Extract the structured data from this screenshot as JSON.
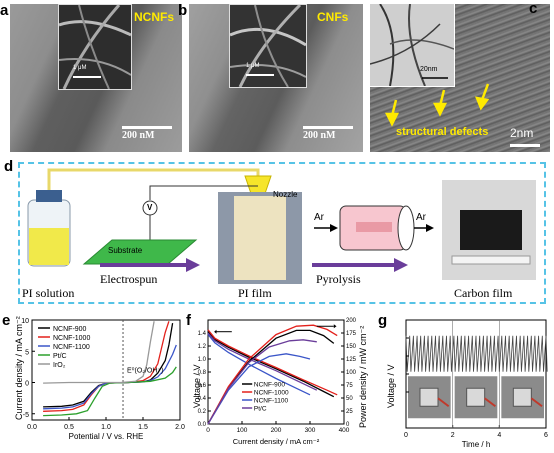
{
  "panel_labels": {
    "a": "a",
    "b": "b",
    "c": "c",
    "d": "d",
    "e": "e",
    "f": "f",
    "g": "g"
  },
  "panel_a": {
    "inset_label": "NCNFs",
    "inset_scale": "1 μM",
    "scale": "200 nM"
  },
  "panel_b": {
    "inset_label": "CNFs",
    "inset_scale": "1 μM",
    "scale": "200 nM"
  },
  "panel_c": {
    "inset_scale": "20nm",
    "annotation": "structural defects",
    "scale": "2nm"
  },
  "panel_d": {
    "nozzle": "Nozzle",
    "voltage": "V",
    "substrate": "Substrate",
    "electrospun": "Electrospun",
    "pyrolysis": "Pyrolysis",
    "gas_in": "Ar",
    "gas_out": "Ar",
    "pi_solution": "PI solution",
    "pi_film": "PI film",
    "carbon_film": "Carbon film"
  },
  "colors": {
    "accent": "#6a3d9a",
    "dashed": "#56c3e6",
    "yellow": "#ffea00"
  },
  "chart_data": [
    {
      "panel": "e",
      "type": "line",
      "xlabel": "Potential / V vs. RHE",
      "ylabel": "Current density / mA cm⁻²",
      "xlim": [
        0,
        2.0
      ],
      "ylim": [
        -6,
        10
      ],
      "xticks": [
        "0.0",
        "0.5",
        "1.0",
        "1.5",
        "2.0"
      ],
      "yticks": [
        "-5",
        "0",
        "5",
        "10"
      ],
      "annotation": "E⁰(O₂/OH⁻)",
      "reference_x": 1.23,
      "series": [
        {
          "name": "NCNF-900",
          "color": "#000000",
          "x": [
            0.15,
            0.4,
            0.55,
            0.7,
            0.8,
            0.9,
            1.0,
            1.3,
            1.5,
            1.6,
            1.7,
            1.8,
            1.85,
            1.9
          ],
          "y": [
            -3.9,
            -3.8,
            -3.6,
            -3.0,
            -1.6,
            -0.5,
            -0.1,
            0,
            0.1,
            0.4,
            1.5,
            3.5,
            6,
            9.5
          ]
        },
        {
          "name": "NCNF-1000",
          "color": "#e3201b",
          "x": [
            0.15,
            0.4,
            0.55,
            0.7,
            0.8,
            0.9,
            1.0,
            1.3,
            1.5,
            1.6,
            1.7,
            1.75,
            1.8,
            1.85
          ],
          "y": [
            -4.6,
            -4.5,
            -4.3,
            -3.6,
            -2.0,
            -0.6,
            -0.1,
            0,
            0.3,
            1.0,
            3.0,
            5.5,
            8,
            9.8
          ]
        },
        {
          "name": "NCNF-1100",
          "color": "#3a55c8",
          "x": [
            0.15,
            0.4,
            0.55,
            0.7,
            0.8,
            0.9,
            1.0,
            1.3,
            1.5,
            1.6,
            1.7,
            1.8,
            1.9,
            1.95
          ],
          "y": [
            -4.2,
            -4.1,
            -3.9,
            -3.3,
            -1.8,
            -0.6,
            -0.1,
            0,
            0.1,
            0.3,
            0.9,
            2.2,
            4.5,
            6
          ]
        },
        {
          "name": "Pt/C",
          "color": "#2ca02c",
          "x": [
            0.15,
            0.4,
            0.6,
            0.75,
            0.85,
            0.95,
            1.05,
            1.3,
            1.6,
            1.8,
            1.9,
            1.95
          ],
          "y": [
            -5.3,
            -5.2,
            -5.0,
            -4.5,
            -2.5,
            -0.6,
            -0.1,
            0,
            0.2,
            0.7,
            1.6,
            2.5
          ]
        },
        {
          "name": "IrO₂",
          "color": "#999999",
          "x": [
            0.15,
            0.5,
            0.9,
            1.2,
            1.4,
            1.5,
            1.55,
            1.6,
            1.65
          ],
          "y": [
            -0.1,
            0,
            0,
            0,
            0.2,
            1.0,
            2.8,
            6.5,
            9.8
          ]
        }
      ]
    },
    {
      "panel": "f",
      "type": "line",
      "xlabel": "Current density / mA cm⁻²",
      "ylabel": "Voltage / V",
      "y2label": "Power density / mW cm⁻²",
      "xlim": [
        0,
        400
      ],
      "ylim": [
        0,
        1.6
      ],
      "y2lim": [
        0,
        200
      ],
      "xticks": [
        "0",
        "100",
        "200",
        "300",
        "400"
      ],
      "yticks": [
        "0.0",
        "0.2",
        "0.4",
        "0.6",
        "0.8",
        "1.0",
        "1.2",
        "1.4"
      ],
      "y2ticks": [
        "0",
        "25",
        "50",
        "75",
        "100",
        "125",
        "150",
        "175",
        "200"
      ],
      "polarization": [
        {
          "name": "NCNF-900",
          "color": "#000000",
          "x": [
            0,
            20,
            60,
            120,
            200,
            280,
            340,
            370
          ],
          "y": [
            1.42,
            1.3,
            1.18,
            1.03,
            0.85,
            0.66,
            0.5,
            0.42
          ]
        },
        {
          "name": "NCNF-1000",
          "color": "#e3201b",
          "x": [
            0,
            20,
            60,
            120,
            200,
            280,
            350,
            380
          ],
          "y": [
            1.45,
            1.32,
            1.2,
            1.05,
            0.87,
            0.68,
            0.52,
            0.45
          ]
        },
        {
          "name": "NCNF-1100",
          "color": "#3a55c8",
          "x": [
            0,
            20,
            60,
            120,
            200,
            260,
            300
          ],
          "y": [
            1.38,
            1.25,
            1.1,
            0.92,
            0.7,
            0.55,
            0.45
          ]
        },
        {
          "name": "Pt/C",
          "color": "#6a3d9a",
          "x": [
            0,
            20,
            60,
            120,
            200,
            280,
            320
          ],
          "y": [
            1.4,
            1.28,
            1.15,
            1.0,
            0.82,
            0.62,
            0.52
          ]
        }
      ],
      "power": [
        {
          "name": "NCNF-900",
          "color": "#000000",
          "x": [
            0,
            60,
            120,
            200,
            260,
            300,
            340,
            370
          ],
          "y": [
            0,
            70,
            120,
            165,
            180,
            180,
            170,
            155
          ]
        },
        {
          "name": "NCNF-1000",
          "color": "#e3201b",
          "x": [
            0,
            60,
            120,
            200,
            260,
            310,
            350,
            380
          ],
          "y": [
            0,
            72,
            125,
            172,
            188,
            190,
            182,
            170
          ]
        },
        {
          "name": "NCNF-1100",
          "color": "#3a55c8",
          "x": [
            0,
            60,
            120,
            180,
            230,
            270,
            300
          ],
          "y": [
            0,
            65,
            110,
            130,
            135,
            130,
            125
          ]
        },
        {
          "name": "Pt/C",
          "color": "#6a3d9a",
          "x": [
            0,
            60,
            120,
            180,
            240,
            280,
            320
          ],
          "y": [
            0,
            68,
            118,
            148,
            160,
            162,
            158
          ]
        }
      ]
    },
    {
      "panel": "g",
      "type": "line",
      "xlabel": "Time / h",
      "ylabel": "Voltage / V",
      "xlim": [
        0,
        6
      ],
      "ylim": [
        0,
        2.4
      ],
      "xticks": [
        "0",
        "2",
        "4",
        "6"
      ],
      "ytick_labels": [
        "0.8",
        "1.2",
        "1.6",
        "2.0"
      ],
      "cycle_voltage_high": 2.05,
      "cycle_voltage_low": 1.25,
      "cycles": 38
    }
  ]
}
